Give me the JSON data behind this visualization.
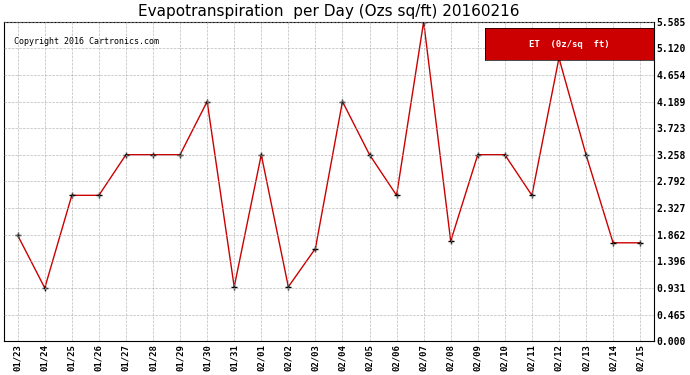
{
  "title": "Evapotranspiration  per Day (Ozs sq/ft) 20160216",
  "copyright": "Copyright 2016 Cartronics.com",
  "legend_label": "ET  (0z/sq  ft)",
  "dates": [
    "01/23",
    "01/24",
    "01/25",
    "01/26",
    "01/27",
    "01/28",
    "01/29",
    "01/30",
    "01/31",
    "02/01",
    "02/02",
    "02/03",
    "02/04",
    "02/05",
    "02/06",
    "02/07",
    "02/08",
    "02/09",
    "02/10",
    "02/11",
    "02/12",
    "02/13",
    "02/14",
    "02/15"
  ],
  "values": [
    1.85,
    0.93,
    2.55,
    2.55,
    3.26,
    3.26,
    3.26,
    4.19,
    0.95,
    3.26,
    0.95,
    1.62,
    4.19,
    3.26,
    2.55,
    5.585,
    1.75,
    3.26,
    3.26,
    2.55,
    4.95,
    3.26,
    1.72,
    1.72
  ],
  "line_color": "#cc0000",
  "marker": "+",
  "marker_color": "#000000",
  "marker_size": 5,
  "bg_color": "#ffffff",
  "grid_color": "#aaaaaa",
  "yticks": [
    0.0,
    0.465,
    0.931,
    1.396,
    1.862,
    2.327,
    2.792,
    3.258,
    3.723,
    4.189,
    4.654,
    5.12,
    5.585
  ],
  "ylim": [
    0.0,
    5.585
  ],
  "title_fontsize": 11,
  "legend_bg": "#cc0000",
  "legend_text_color": "#ffffff"
}
